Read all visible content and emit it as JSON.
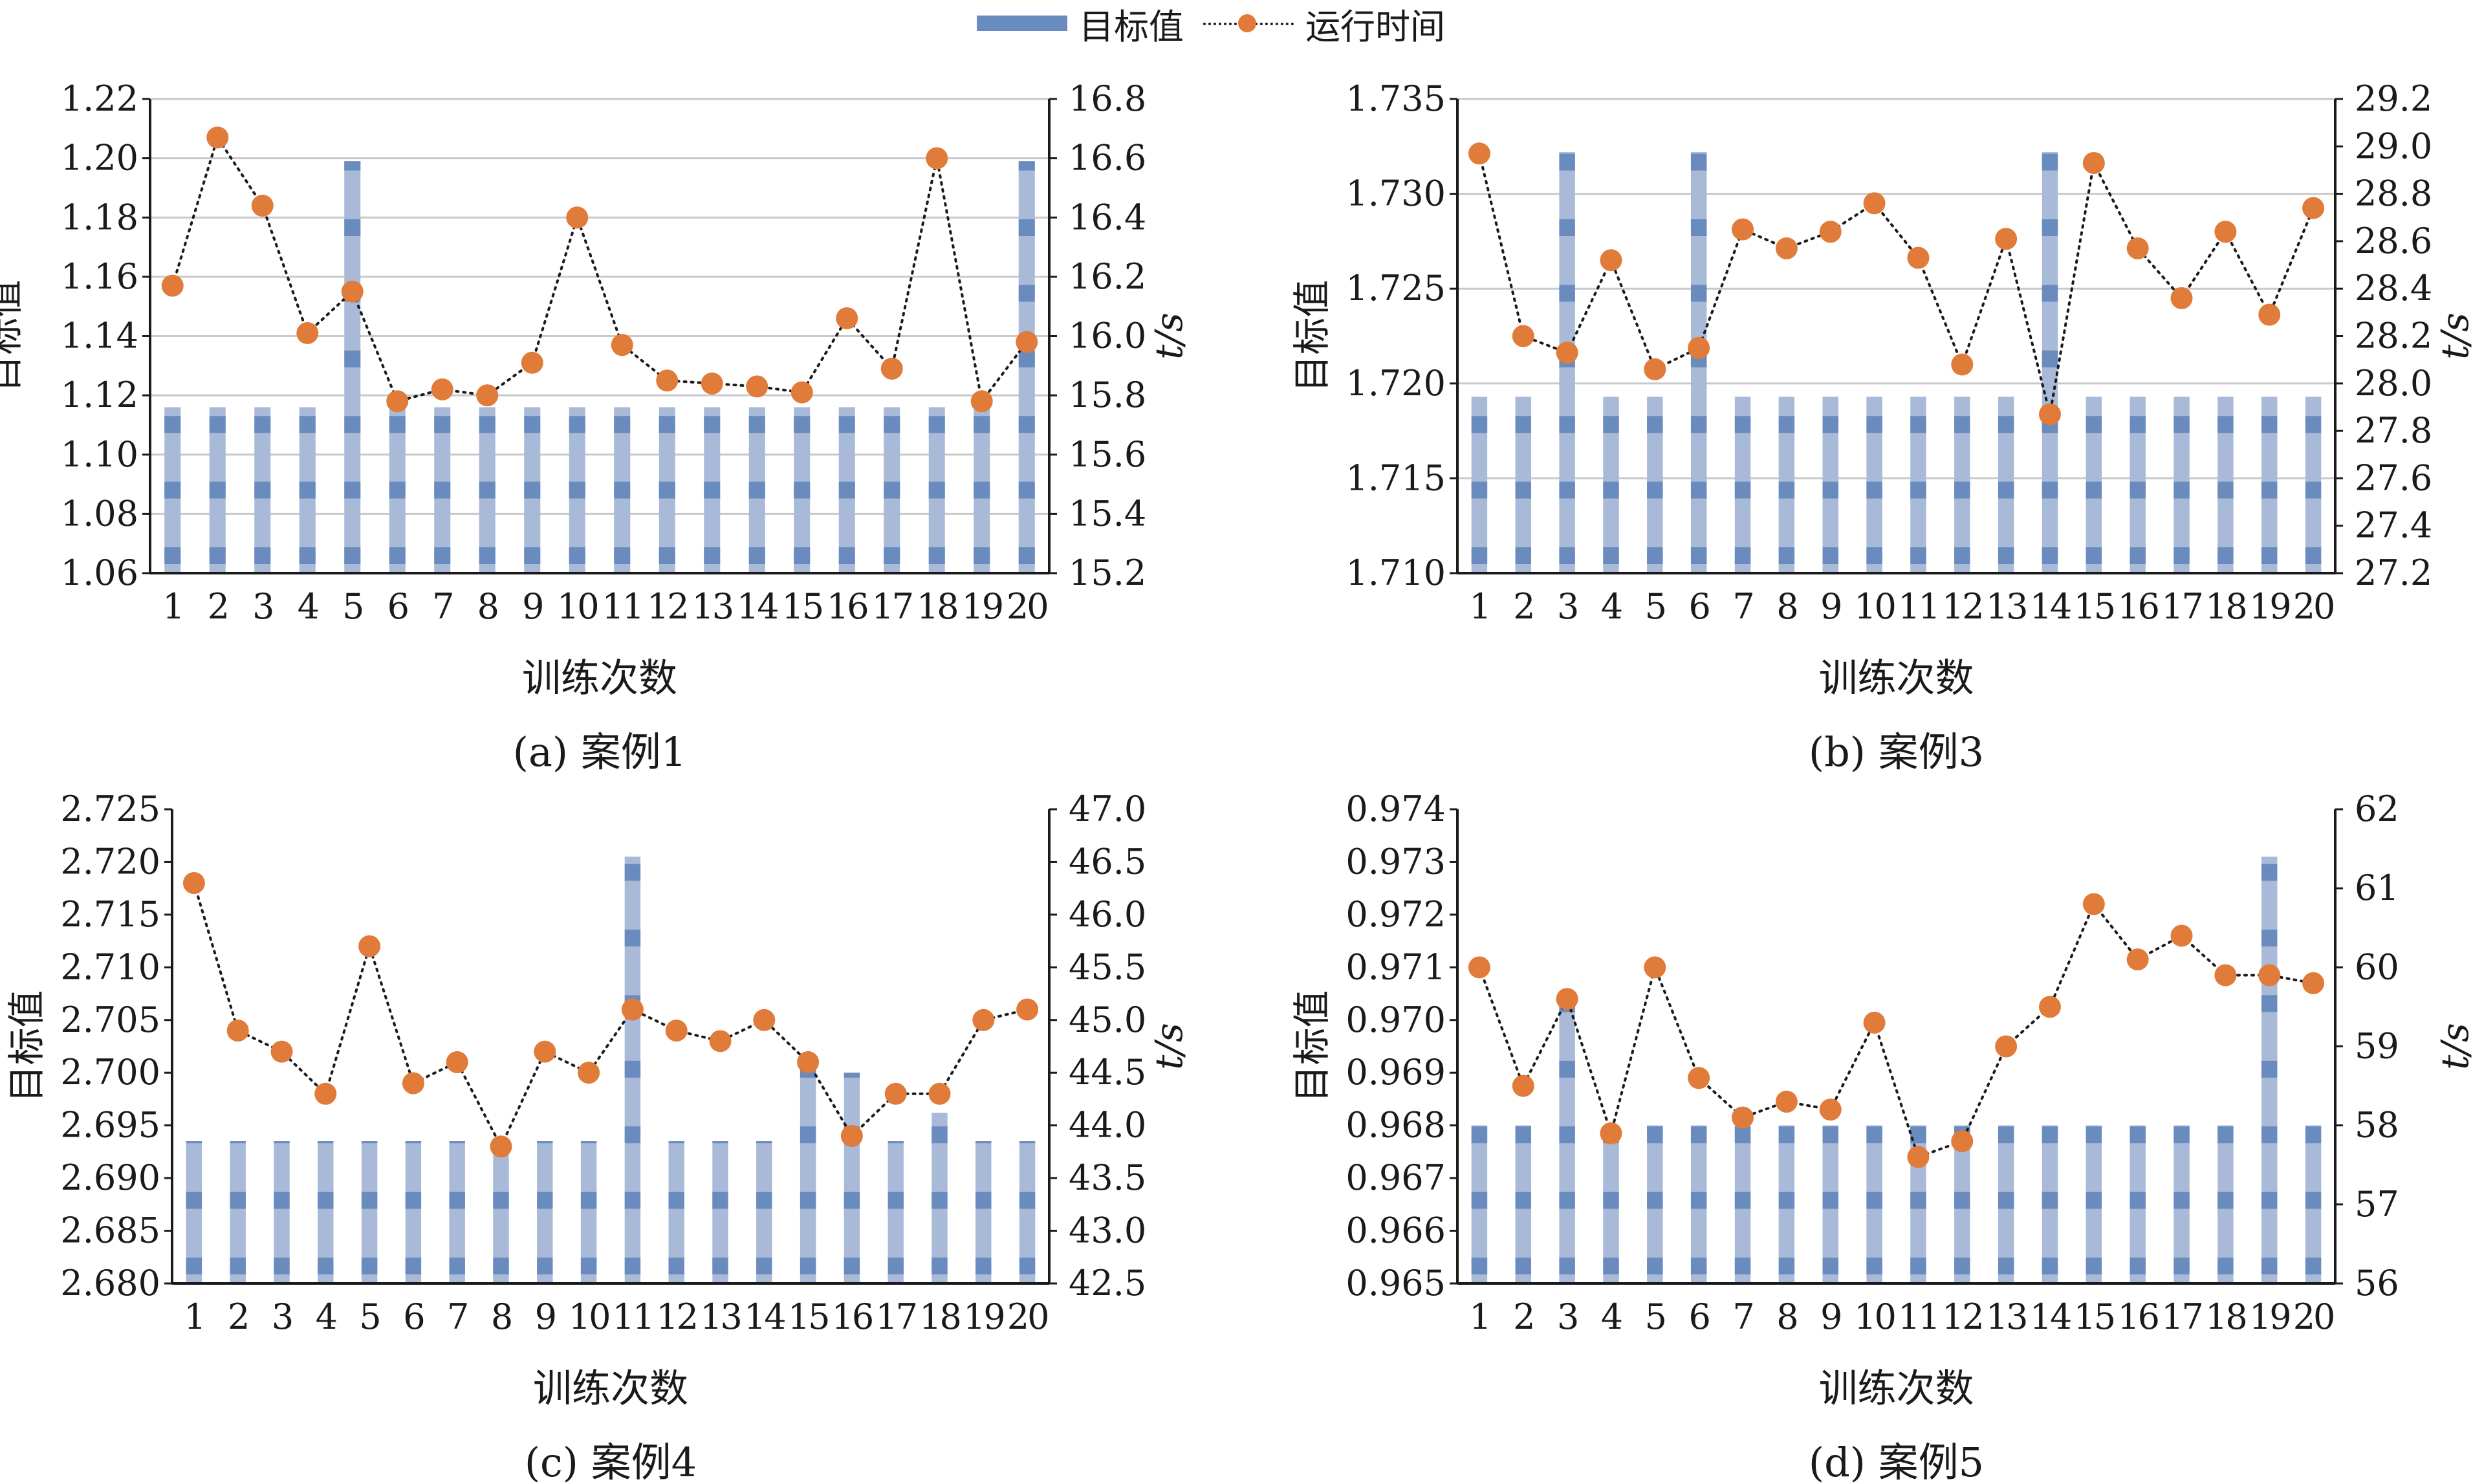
{
  "legend": {
    "bar_label": "目标值",
    "line_label": "运行时间",
    "bar_color": "#6a8bbd",
    "line_color": "#e07b39"
  },
  "chart_data": [
    {
      "type": "bar",
      "subtitle": "(a) 案例1",
      "xlabel": "训练次数",
      "ylabel": "目标值",
      "y2label": "t/s",
      "categories": [
        "1",
        "2",
        "3",
        "4",
        "5",
        "6",
        "7",
        "8",
        "9",
        "10",
        "11",
        "12",
        "13",
        "14",
        "15",
        "16",
        "17",
        "18",
        "19",
        "20"
      ],
      "ylim": [
        1.06,
        1.22
      ],
      "yticks": [
        "1.06",
        "1.08",
        "1.10",
        "1.12",
        "1.14",
        "1.16",
        "1.18",
        "1.20",
        "1.22"
      ],
      "y2lim": [
        15.2,
        16.8
      ],
      "y2ticks": [
        "15.2",
        "15.4",
        "15.6",
        "15.8",
        "16.0",
        "16.2",
        "16.4",
        "16.6",
        "16.8"
      ],
      "grid": true,
      "series": [
        {
          "name": "目标值",
          "type": "bar",
          "axis": "left",
          "values": [
            1.116,
            1.116,
            1.116,
            1.116,
            1.199,
            1.116,
            1.116,
            1.116,
            1.116,
            1.116,
            1.116,
            1.116,
            1.116,
            1.116,
            1.116,
            1.116,
            1.116,
            1.116,
            1.116,
            1.199
          ]
        },
        {
          "name": "运行时间",
          "type": "line",
          "axis": "right",
          "values": [
            16.17,
            16.67,
            16.44,
            16.01,
            16.15,
            15.78,
            15.82,
            15.8,
            15.91,
            16.4,
            15.97,
            15.85,
            15.84,
            15.83,
            15.81,
            16.06,
            15.89,
            16.6,
            15.78,
            15.98
          ]
        }
      ]
    },
    {
      "type": "bar",
      "subtitle": "(b) 案例3",
      "xlabel": "训练次数",
      "ylabel": "目标值",
      "y2label": "t/s",
      "categories": [
        "1",
        "2",
        "3",
        "4",
        "5",
        "6",
        "7",
        "8",
        "9",
        "10",
        "11",
        "12",
        "13",
        "14",
        "15",
        "16",
        "17",
        "18",
        "19",
        "20"
      ],
      "ylim": [
        1.71,
        1.735
      ],
      "yticks": [
        "1.710",
        "1.715",
        "1.720",
        "1.725",
        "1.730",
        "1.735"
      ],
      "y2lim": [
        27.2,
        29.2
      ],
      "y2ticks": [
        "27.2",
        "27.4",
        "27.6",
        "27.8",
        "28.0",
        "28.2",
        "28.4",
        "28.6",
        "28.8",
        "29.0",
        "29.2"
      ],
      "grid": true,
      "series": [
        {
          "name": "目标值",
          "type": "bar",
          "axis": "left",
          "values": [
            1.7193,
            1.7193,
            1.7322,
            1.7193,
            1.7193,
            1.7322,
            1.7193,
            1.7193,
            1.7193,
            1.7193,
            1.7193,
            1.7193,
            1.7193,
            1.7322,
            1.7193,
            1.7193,
            1.7193,
            1.7193,
            1.7193,
            1.7193
          ]
        },
        {
          "name": "运行时间",
          "type": "line",
          "axis": "right",
          "values": [
            28.97,
            28.2,
            28.13,
            28.52,
            28.06,
            28.15,
            28.65,
            28.57,
            28.64,
            28.76,
            28.53,
            28.08,
            28.61,
            27.87,
            28.93,
            28.57,
            28.36,
            28.64,
            28.29,
            28.74
          ]
        }
      ]
    },
    {
      "type": "bar",
      "subtitle": "(c) 案例4",
      "xlabel": "训练次数",
      "ylabel": "目标值",
      "y2label": "t/s",
      "categories": [
        "1",
        "2",
        "3",
        "4",
        "5",
        "6",
        "7",
        "8",
        "9",
        "10",
        "11",
        "12",
        "13",
        "14",
        "15",
        "16",
        "17",
        "18",
        "19",
        "20"
      ],
      "ylim": [
        2.68,
        2.725
      ],
      "yticks": [
        "2.680",
        "2.685",
        "2.690",
        "2.695",
        "2.700",
        "2.705",
        "2.710",
        "2.715",
        "2.720",
        "2.725"
      ],
      "y2lim": [
        42.5,
        47.0
      ],
      "y2ticks": [
        "42.5",
        "43.0",
        "43.5",
        "44.0",
        "44.5",
        "45.0",
        "45.5",
        "46.0",
        "46.5",
        "47.0"
      ],
      "grid": false,
      "series": [
        {
          "name": "目标值",
          "type": "bar",
          "axis": "left",
          "values": [
            2.6935,
            2.6935,
            2.6935,
            2.6935,
            2.6935,
            2.6935,
            2.6935,
            2.6935,
            2.6935,
            2.6935,
            2.7205,
            2.6935,
            2.6935,
            2.6935,
            2.7012,
            2.7,
            2.6935,
            2.6962,
            2.6935,
            2.6935
          ]
        },
        {
          "name": "运行时间",
          "type": "line",
          "axis": "right",
          "values": [
            46.3,
            44.9,
            44.7,
            44.3,
            45.7,
            44.4,
            44.6,
            43.8,
            44.7,
            44.5,
            45.1,
            44.9,
            44.8,
            45.0,
            44.6,
            43.9,
            44.3,
            44.3,
            45.0,
            45.1
          ]
        }
      ]
    },
    {
      "type": "bar",
      "subtitle": "(d) 案例5",
      "xlabel": "训练次数",
      "ylabel": "目标值",
      "y2label": "t/s",
      "categories": [
        "1",
        "2",
        "3",
        "4",
        "5",
        "6",
        "7",
        "8",
        "9",
        "10",
        "11",
        "12",
        "13",
        "14",
        "15",
        "16",
        "17",
        "18",
        "19",
        "20"
      ],
      "ylim": [
        0.965,
        0.974
      ],
      "yticks": [
        "0.965",
        "0.966",
        "0.967",
        "0.968",
        "0.969",
        "0.970",
        "0.971",
        "0.972",
        "0.973",
        "0.974"
      ],
      "y2lim": [
        56,
        62
      ],
      "y2ticks": [
        "56",
        "57",
        "58",
        "59",
        "60",
        "61",
        "62"
      ],
      "grid": false,
      "series": [
        {
          "name": "目标值",
          "type": "bar",
          "axis": "left",
          "values": [
            0.968,
            0.968,
            0.9704,
            0.968,
            0.968,
            0.968,
            0.968,
            0.968,
            0.968,
            0.968,
            0.968,
            0.968,
            0.968,
            0.968,
            0.968,
            0.968,
            0.968,
            0.968,
            0.9731,
            0.968
          ]
        },
        {
          "name": "运行时间",
          "type": "line",
          "axis": "right",
          "values": [
            60.0,
            58.5,
            59.6,
            57.9,
            60.0,
            58.6,
            58.1,
            58.3,
            58.2,
            59.3,
            57.6,
            57.8,
            59.0,
            59.5,
            60.8,
            60.1,
            60.4,
            59.9,
            59.9,
            59.8
          ]
        }
      ]
    }
  ]
}
